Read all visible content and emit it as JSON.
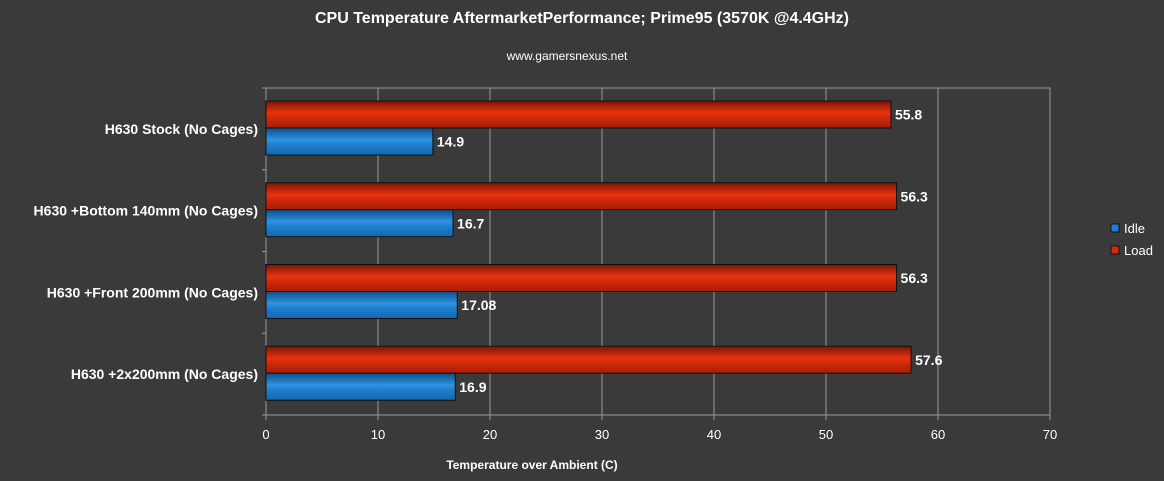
{
  "chart_data": {
    "type": "bar",
    "orientation": "horizontal",
    "title": "CPU Temperature AftermarketPerformance; Prime95 (3570K @4.4GHz)",
    "subtitle": "www.gamersnexus.net",
    "xlabel": "Temperature over Ambient (C)",
    "ylabel": "",
    "xlim": [
      0,
      70
    ],
    "xticks": [
      0,
      10,
      20,
      30,
      40,
      50,
      60,
      70
    ],
    "grid": true,
    "legend_position": "right",
    "categories": [
      "H630 Stock (No Cages)",
      "H630 +Bottom 140mm (No Cages)",
      "H630 +Front 200mm (No Cages)",
      "H630 +2x200mm (No Cages)"
    ],
    "series": [
      {
        "name": "Idle",
        "color": "#1e7fd0",
        "values": [
          14.9,
          16.7,
          17.08,
          16.9
        ],
        "labels": [
          "14.9",
          "16.7",
          "17.08",
          "16.9"
        ]
      },
      {
        "name": "Load",
        "color": "#d62a0f",
        "values": [
          55.8,
          56.3,
          56.3,
          57.6
        ],
        "labels": [
          "55.8",
          "56.3",
          "56.3",
          "57.6"
        ]
      }
    ]
  }
}
